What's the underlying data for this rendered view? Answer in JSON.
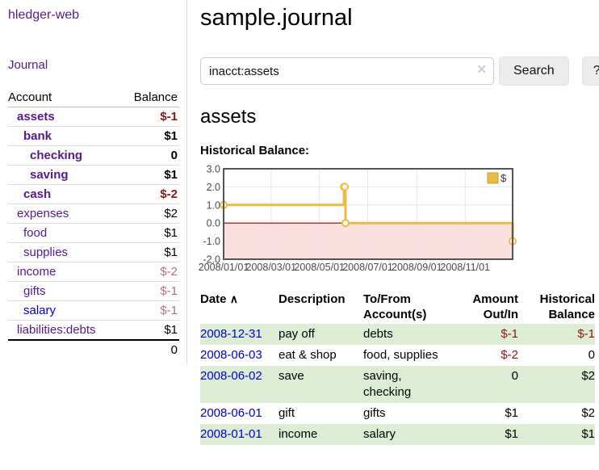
{
  "app": {
    "title": "hledger-web"
  },
  "sidebar": {
    "journal_link": "Journal",
    "accounts": {
      "header_account": "Account",
      "header_balance": "Balance",
      "rows": [
        {
          "name": "assets",
          "level": 1,
          "bold": true,
          "blue": false,
          "balance": "$-1",
          "balance_class": "neg-strong"
        },
        {
          "name": "bank",
          "level": 2,
          "bold": true,
          "blue": false,
          "balance": "$1",
          "balance_class": ""
        },
        {
          "name": "checking",
          "level": 3,
          "bold": true,
          "blue": false,
          "balance": "0",
          "balance_class": ""
        },
        {
          "name": "saving",
          "level": 3,
          "bold": true,
          "blue": false,
          "balance": "$1",
          "balance_class": ""
        },
        {
          "name": "cash",
          "level": 2,
          "bold": true,
          "blue": false,
          "balance": "$-2",
          "balance_class": "neg-strong"
        },
        {
          "name": "expenses",
          "level": 1,
          "bold": false,
          "blue": false,
          "balance": "$2",
          "balance_class": ""
        },
        {
          "name": "food",
          "level": 2,
          "bold": false,
          "blue": false,
          "balance": "$1",
          "balance_class": ""
        },
        {
          "name": "supplies",
          "level": 2,
          "bold": false,
          "blue": false,
          "balance": "$1",
          "balance_class": ""
        },
        {
          "name": "income",
          "level": 1,
          "bold": false,
          "blue": false,
          "balance": "$-2",
          "balance_class": "neg-soft"
        },
        {
          "name": "gifts",
          "level": 2,
          "bold": false,
          "blue": false,
          "balance": "$-1",
          "balance_class": "neg-soft"
        },
        {
          "name": "salary",
          "level": 2,
          "bold": false,
          "blue": true,
          "balance": "$-1",
          "balance_class": "neg-soft"
        },
        {
          "name": "liabilities:debts",
          "level": 1,
          "bold": false,
          "blue": false,
          "balance": "$1",
          "balance_class": ""
        }
      ],
      "total": "0"
    }
  },
  "header": {
    "title": "sample.journal"
  },
  "search": {
    "value": "inacct:assets",
    "clear_icon": "✕",
    "search_button": "Search",
    "help_button": "?"
  },
  "account_page": {
    "title": "assets"
  },
  "chart_data": {
    "type": "line",
    "title": "Historical Balance:",
    "x_range": [
      "2008-01-01",
      "2008-12-31"
    ],
    "ylim": [
      -2,
      3
    ],
    "y_ticks": [
      {
        "v": 3,
        "label": "3.0"
      },
      {
        "v": 2,
        "label": "2.0"
      },
      {
        "v": 1,
        "label": "1.0"
      },
      {
        "v": 0,
        "label": "0.0"
      },
      {
        "v": -1,
        "label": "-1.0"
      },
      {
        "v": -2,
        "label": "-2.0"
      }
    ],
    "x_ticks": [
      {
        "d": "2008-01-01",
        "label": "2008/01/01"
      },
      {
        "d": "2008-03-01",
        "label": "2008/03/01"
      },
      {
        "d": "2008-05-01",
        "label": "2008/05/01"
      },
      {
        "d": "2008-07-01",
        "label": "2008/07/01"
      },
      {
        "d": "2008-09-01",
        "label": "2008/09/01"
      },
      {
        "d": "2008-11-01",
        "label": "2008/11/01"
      }
    ],
    "series": [
      {
        "name": "$",
        "color": "#e8bc45",
        "point_fill": "#ffffff",
        "step": true,
        "points": [
          [
            "2008-01-01",
            1
          ],
          [
            "2008-06-01",
            2
          ],
          [
            "2008-06-02",
            2
          ],
          [
            "2008-06-03",
            0
          ],
          [
            "2008-12-31",
            -1
          ]
        ]
      }
    ],
    "grid": {
      "line_color": "#e6e6e6",
      "border_color": "#545454",
      "zero_line_color": "#8b0000",
      "negative_region_color": "#fcdfdf",
      "tick_text_color": "#4a4a4a"
    },
    "legend": {
      "position": "top-right",
      "items": [
        {
          "label": "$",
          "color": "#e8bc45"
        }
      ]
    }
  },
  "register": {
    "headers": {
      "date": "Date",
      "sort_icon": "∧",
      "description": "Description",
      "accounts": "To/From Account(s)",
      "amount": "Amount Out/In",
      "balance": "Historical Balance"
    },
    "rows": [
      {
        "date": "2008-12-31",
        "description": "pay off",
        "accounts": "debts",
        "amount": "$-1",
        "amount_class": "neg-strong",
        "balance": "$-1",
        "balance_class": "neg-strong",
        "striped": true
      },
      {
        "date": "2008-06-03",
        "description": "eat & shop",
        "accounts": "food, supplies",
        "amount": "$-2",
        "amount_class": "neg-strong",
        "balance": "0",
        "balance_class": "",
        "striped": false
      },
      {
        "date": "2008-06-02",
        "description": "save",
        "accounts": "saving, checking",
        "amount": "0",
        "amount_class": "",
        "balance": "$2",
        "balance_class": "",
        "striped": true
      },
      {
        "date": "2008-06-01",
        "description": "gift",
        "accounts": "gifts",
        "amount": "$1",
        "amount_class": "",
        "balance": "$2",
        "balance_class": "",
        "striped": false
      },
      {
        "date": "2008-01-01",
        "description": "income",
        "accounts": "salary",
        "amount": "$1",
        "amount_class": "",
        "balance": "$1",
        "balance_class": "",
        "striped": true
      }
    ]
  },
  "colors": {
    "purple_link": "#551a8b",
    "blue_link": "#0000cc",
    "negative_strong": "#8b1616",
    "negative_soft": "#bd7272",
    "row_stripe_green": "#ddedd5",
    "chart_line_gold": "#e8bc45",
    "button_bg": "#ececec"
  }
}
